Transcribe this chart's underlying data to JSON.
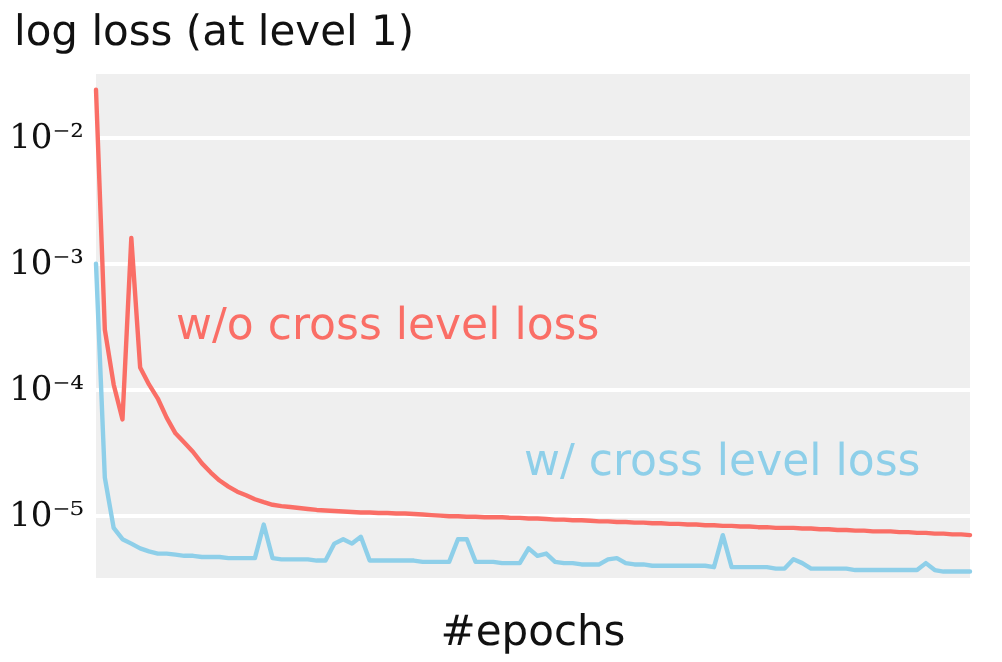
{
  "chart_data": {
    "type": "line",
    "title": "log loss (at level 1)",
    "xlabel": "#epochs",
    "categories": [
      null,
      null,
      null,
      null,
      null,
      null,
      null,
      null,
      null,
      null,
      null,
      null,
      null,
      null,
      null,
      null,
      null,
      null,
      null,
      null,
      null,
      null,
      null,
      null,
      null,
      null,
      null,
      null,
      null,
      null,
      null,
      null,
      null,
      null,
      null,
      null,
      null,
      null,
      null,
      null,
      null,
      null,
      null,
      null,
      null,
      null,
      null,
      null,
      null,
      null,
      null,
      null,
      null,
      null,
      null,
      null,
      null,
      null,
      null,
      null,
      null,
      null,
      null,
      null,
      null,
      null,
      null,
      null,
      null,
      null,
      null,
      null,
      null,
      null,
      null,
      null,
      null,
      null,
      null,
      null,
      null,
      null,
      null,
      null,
      null,
      null,
      null,
      null,
      null,
      null,
      null,
      null,
      null,
      null,
      null,
      null,
      null,
      null,
      null,
      null
    ],
    "series": [
      {
        "name": "w/o cross level loss",
        "color": "#fa6e66",
        "values": [
          0.024,
          0.0003,
          0.00011,
          5.8e-05,
          0.0016,
          0.00015,
          0.00011,
          8.5e-05,
          6e-05,
          4.5e-05,
          3.8e-05,
          3.2e-05,
          2.6e-05,
          2.2e-05,
          1.9e-05,
          1.7e-05,
          1.55e-05,
          1.45e-05,
          1.35e-05,
          1.28e-05,
          1.22e-05,
          1.19e-05,
          1.17e-05,
          1.15e-05,
          1.13e-05,
          1.11e-05,
          1.1e-05,
          1.09e-05,
          1.08e-05,
          1.07e-05,
          1.06e-05,
          1.06e-05,
          1.05e-05,
          1.05e-05,
          1.04e-05,
          1.04e-05,
          1.03e-05,
          1.02e-05,
          1.01e-05,
          1e-05,
          9.9e-06,
          9.9e-06,
          9.8e-06,
          9.8e-06,
          9.7e-06,
          9.7e-06,
          9.7e-06,
          9.6e-06,
          9.6e-06,
          9.5e-06,
          9.5e-06,
          9.4e-06,
          9.3e-06,
          9.3e-06,
          9.2e-06,
          9.2e-06,
          9.1e-06,
          9e-06,
          9e-06,
          8.9e-06,
          8.9e-06,
          8.8e-06,
          8.8e-06,
          8.7e-06,
          8.7e-06,
          8.6e-06,
          8.6e-06,
          8.5e-06,
          8.5e-06,
          8.4e-06,
          8.4e-06,
          8.3e-06,
          8.3e-06,
          8.2e-06,
          8.2e-06,
          8.1e-06,
          8.1e-06,
          8e-06,
          8e-06,
          8e-06,
          7.9e-06,
          7.9e-06,
          7.8e-06,
          7.8e-06,
          7.7e-06,
          7.7e-06,
          7.6e-06,
          7.6e-06,
          7.5e-06,
          7.5e-06,
          7.5e-06,
          7.4e-06,
          7.4e-06,
          7.3e-06,
          7.3e-06,
          7.2e-06,
          7.2e-06,
          7.1e-06,
          7.1e-06,
          7e-06
        ]
      },
      {
        "name": "w/ cross level loss",
        "color": "#8ecfe9",
        "values": [
          0.001,
          2e-05,
          8e-06,
          6.5e-06,
          6e-06,
          5.5e-06,
          5.2e-06,
          5e-06,
          5e-06,
          4.9e-06,
          4.8e-06,
          4.8e-06,
          4.7e-06,
          4.7e-06,
          4.7e-06,
          4.6e-06,
          4.6e-06,
          4.6e-06,
          4.6e-06,
          8.5e-06,
          4.6e-06,
          4.5e-06,
          4.5e-06,
          4.5e-06,
          4.5e-06,
          4.4e-06,
          4.4e-06,
          6e-06,
          6.5e-06,
          6e-06,
          6.8e-06,
          4.4e-06,
          4.4e-06,
          4.4e-06,
          4.4e-06,
          4.4e-06,
          4.4e-06,
          4.3e-06,
          4.3e-06,
          4.3e-06,
          4.3e-06,
          6.5e-06,
          6.5e-06,
          4.3e-06,
          4.3e-06,
          4.3e-06,
          4.2e-06,
          4.2e-06,
          4.2e-06,
          5.5e-06,
          4.8e-06,
          5e-06,
          4.3e-06,
          4.2e-06,
          4.2e-06,
          4.1e-06,
          4.1e-06,
          4.1e-06,
          4.5e-06,
          4.6e-06,
          4.2e-06,
          4.1e-06,
          4.1e-06,
          4e-06,
          4e-06,
          4e-06,
          4e-06,
          4e-06,
          4e-06,
          4e-06,
          3.9e-06,
          7e-06,
          3.9e-06,
          3.9e-06,
          3.9e-06,
          3.9e-06,
          3.9e-06,
          3.8e-06,
          3.8e-06,
          4.5e-06,
          4.2e-06,
          3.8e-06,
          3.8e-06,
          3.8e-06,
          3.8e-06,
          3.8e-06,
          3.7e-06,
          3.7e-06,
          3.7e-06,
          3.7e-06,
          3.7e-06,
          3.7e-06,
          3.7e-06,
          3.7e-06,
          4.2e-06,
          3.7e-06,
          3.6e-06,
          3.6e-06,
          3.6e-06,
          3.6e-06
        ]
      }
    ],
    "log": "y",
    "ylim": [
      3.2e-06,
      0.032
    ],
    "yticks": [
      {
        "value": 1e-05,
        "label": "10⁻⁵"
      },
      {
        "value": 0.0001,
        "label": "10⁻⁴"
      },
      {
        "value": 0.001,
        "label": "10⁻³"
      },
      {
        "value": 0.01,
        "label": "10⁻²"
      }
    ],
    "grid": "y",
    "legend": false,
    "marker": "none",
    "line_style": "solid"
  }
}
